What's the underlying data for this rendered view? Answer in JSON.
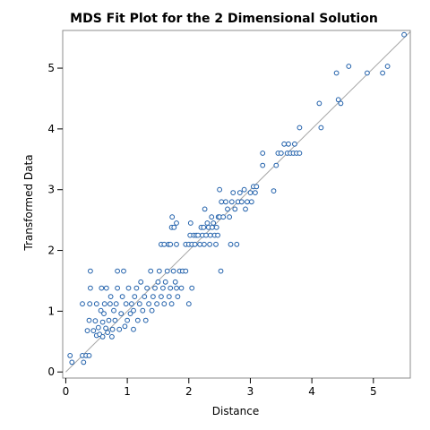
{
  "chart_data": {
    "type": "scatter",
    "title": "MDS Fit Plot for the 2 Dimensional Solution",
    "xlabel": "Distance",
    "ylabel": "Transformed Data",
    "xlim": [
      -0.05,
      5.6
    ],
    "ylim": [
      -0.1,
      5.62
    ],
    "x_ticks": [
      0,
      1,
      2,
      3,
      4,
      5
    ],
    "y_ticks": [
      0,
      1,
      2,
      3,
      4,
      5
    ],
    "grid": false,
    "reference_line": {
      "from": [
        0,
        0
      ],
      "to": [
        5.6,
        5.6
      ]
    },
    "colors": {
      "points": "#1f5faa",
      "reference_line": "#a6a6a6",
      "frame": "#8c8c8c"
    },
    "points": [
      [
        0.07,
        0.27
      ],
      [
        0.1,
        0.16
      ],
      [
        0.27,
        0.27
      ],
      [
        0.29,
        0.16
      ],
      [
        0.33,
        0.27
      ],
      [
        0.38,
        0.27
      ],
      [
        0.27,
        1.12
      ],
      [
        0.35,
        0.68
      ],
      [
        0.38,
        0.85
      ],
      [
        0.39,
        1.12
      ],
      [
        0.4,
        1.38
      ],
      [
        0.4,
        1.66
      ],
      [
        0.45,
        0.68
      ],
      [
        0.48,
        0.84
      ],
      [
        0.5,
        0.6
      ],
      [
        0.5,
        1.12
      ],
      [
        0.53,
        0.73
      ],
      [
        0.55,
        0.62
      ],
      [
        0.57,
        1.01
      ],
      [
        0.58,
        1.38
      ],
      [
        0.6,
        0.58
      ],
      [
        0.6,
        0.82
      ],
      [
        0.62,
        0.96
      ],
      [
        0.63,
        1.12
      ],
      [
        0.65,
        0.72
      ],
      [
        0.66,
        1.38
      ],
      [
        0.68,
        0.65
      ],
      [
        0.7,
        0.85
      ],
      [
        0.72,
        1.12
      ],
      [
        0.73,
        1.24
      ],
      [
        0.75,
        0.58
      ],
      [
        0.76,
        0.7
      ],
      [
        0.78,
        1.01
      ],
      [
        0.8,
        0.85
      ],
      [
        0.82,
        1.12
      ],
      [
        0.84,
        1.38
      ],
      [
        0.84,
        1.66
      ],
      [
        0.87,
        0.7
      ],
      [
        0.9,
        0.96
      ],
      [
        0.92,
        1.24
      ],
      [
        0.94,
        1.66
      ],
      [
        0.96,
        0.75
      ],
      [
        0.98,
        1.12
      ],
      [
        1.0,
        0.85
      ],
      [
        1.02,
        1.38
      ],
      [
        1.05,
        0.96
      ],
      [
        1.07,
        1.12
      ],
      [
        1.1,
        0.7
      ],
      [
        1.1,
        1.01
      ],
      [
        1.12,
        1.24
      ],
      [
        1.15,
        1.38
      ],
      [
        1.17,
        0.85
      ],
      [
        1.2,
        1.12
      ],
      [
        1.22,
        1.48
      ],
      [
        1.25,
        1.01
      ],
      [
        1.28,
        1.24
      ],
      [
        1.3,
        0.85
      ],
      [
        1.32,
        1.38
      ],
      [
        1.35,
        1.12
      ],
      [
        1.38,
        1.66
      ],
      [
        1.4,
        1.01
      ],
      [
        1.42,
        1.24
      ],
      [
        1.45,
        1.38
      ],
      [
        1.48,
        1.12
      ],
      [
        1.5,
        1.48
      ],
      [
        1.52,
        1.66
      ],
      [
        1.55,
        1.24
      ],
      [
        1.58,
        1.38
      ],
      [
        1.6,
        1.12
      ],
      [
        1.62,
        1.48
      ],
      [
        1.65,
        1.66
      ],
      [
        1.68,
        1.24
      ],
      [
        1.7,
        1.38
      ],
      [
        1.72,
        1.12
      ],
      [
        1.75,
        1.66
      ],
      [
        1.78,
        1.48
      ],
      [
        1.8,
        1.38
      ],
      [
        1.82,
        1.24
      ],
      [
        1.85,
        1.66
      ],
      [
        1.88,
        1.38
      ],
      [
        1.9,
        1.66
      ],
      [
        1.95,
        1.66
      ],
      [
        2.0,
        1.12
      ],
      [
        2.05,
        1.38
      ],
      [
        1.55,
        2.1
      ],
      [
        1.6,
        2.1
      ],
      [
        1.67,
        2.1
      ],
      [
        1.7,
        2.1
      ],
      [
        1.72,
        2.38
      ],
      [
        1.73,
        2.55
      ],
      [
        1.76,
        2.38
      ],
      [
        1.8,
        2.1
      ],
      [
        1.8,
        2.45
      ],
      [
        1.95,
        2.1
      ],
      [
        2.0,
        2.1
      ],
      [
        2.02,
        2.25
      ],
      [
        2.03,
        2.45
      ],
      [
        2.05,
        2.1
      ],
      [
        2.08,
        2.25
      ],
      [
        2.1,
        2.1
      ],
      [
        2.12,
        2.25
      ],
      [
        2.15,
        2.25
      ],
      [
        2.18,
        2.1
      ],
      [
        2.2,
        2.38
      ],
      [
        2.22,
        2.25
      ],
      [
        2.24,
        2.38
      ],
      [
        2.25,
        2.1
      ],
      [
        2.26,
        2.68
      ],
      [
        2.28,
        2.25
      ],
      [
        2.3,
        2.45
      ],
      [
        2.32,
        2.38
      ],
      [
        2.34,
        2.1
      ],
      [
        2.35,
        2.25
      ],
      [
        2.37,
        2.55
      ],
      [
        2.38,
        2.38
      ],
      [
        2.4,
        2.45
      ],
      [
        2.42,
        2.25
      ],
      [
        2.44,
        2.1
      ],
      [
        2.45,
        2.38
      ],
      [
        2.47,
        2.25
      ],
      [
        2.48,
        2.55
      ],
      [
        2.5,
        3.0
      ],
      [
        2.5,
        2.55
      ],
      [
        2.52,
        1.66
      ],
      [
        2.53,
        2.8
      ],
      [
        2.56,
        2.55
      ],
      [
        2.6,
        2.8
      ],
      [
        2.63,
        2.68
      ],
      [
        2.66,
        2.55
      ],
      [
        2.68,
        2.1
      ],
      [
        2.7,
        2.8
      ],
      [
        2.72,
        2.95
      ],
      [
        2.75,
        2.68
      ],
      [
        2.78,
        2.1
      ],
      [
        2.8,
        2.8
      ],
      [
        2.83,
        2.95
      ],
      [
        2.86,
        2.8
      ],
      [
        2.9,
        3.0
      ],
      [
        2.92,
        2.68
      ],
      [
        2.95,
        2.8
      ],
      [
        3.0,
        2.95
      ],
      [
        3.02,
        2.8
      ],
      [
        3.05,
        3.05
      ],
      [
        3.08,
        2.95
      ],
      [
        3.1,
        3.05
      ],
      [
        3.2,
        3.4
      ],
      [
        3.2,
        3.6
      ],
      [
        3.38,
        2.98
      ],
      [
        3.42,
        3.4
      ],
      [
        3.45,
        3.6
      ],
      [
        3.5,
        3.6
      ],
      [
        3.55,
        3.75
      ],
      [
        3.6,
        3.6
      ],
      [
        3.62,
        3.75
      ],
      [
        3.65,
        3.6
      ],
      [
        3.7,
        3.6
      ],
      [
        3.72,
        3.75
      ],
      [
        3.75,
        3.6
      ],
      [
        3.8,
        3.6
      ],
      [
        3.8,
        4.02
      ],
      [
        4.12,
        4.42
      ],
      [
        4.15,
        4.02
      ],
      [
        4.4,
        4.92
      ],
      [
        4.43,
        4.48
      ],
      [
        4.47,
        4.42
      ],
      [
        4.6,
        5.03
      ],
      [
        4.9,
        4.92
      ],
      [
        5.15,
        4.92
      ],
      [
        5.23,
        5.03
      ],
      [
        5.5,
        5.55
      ]
    ]
  }
}
